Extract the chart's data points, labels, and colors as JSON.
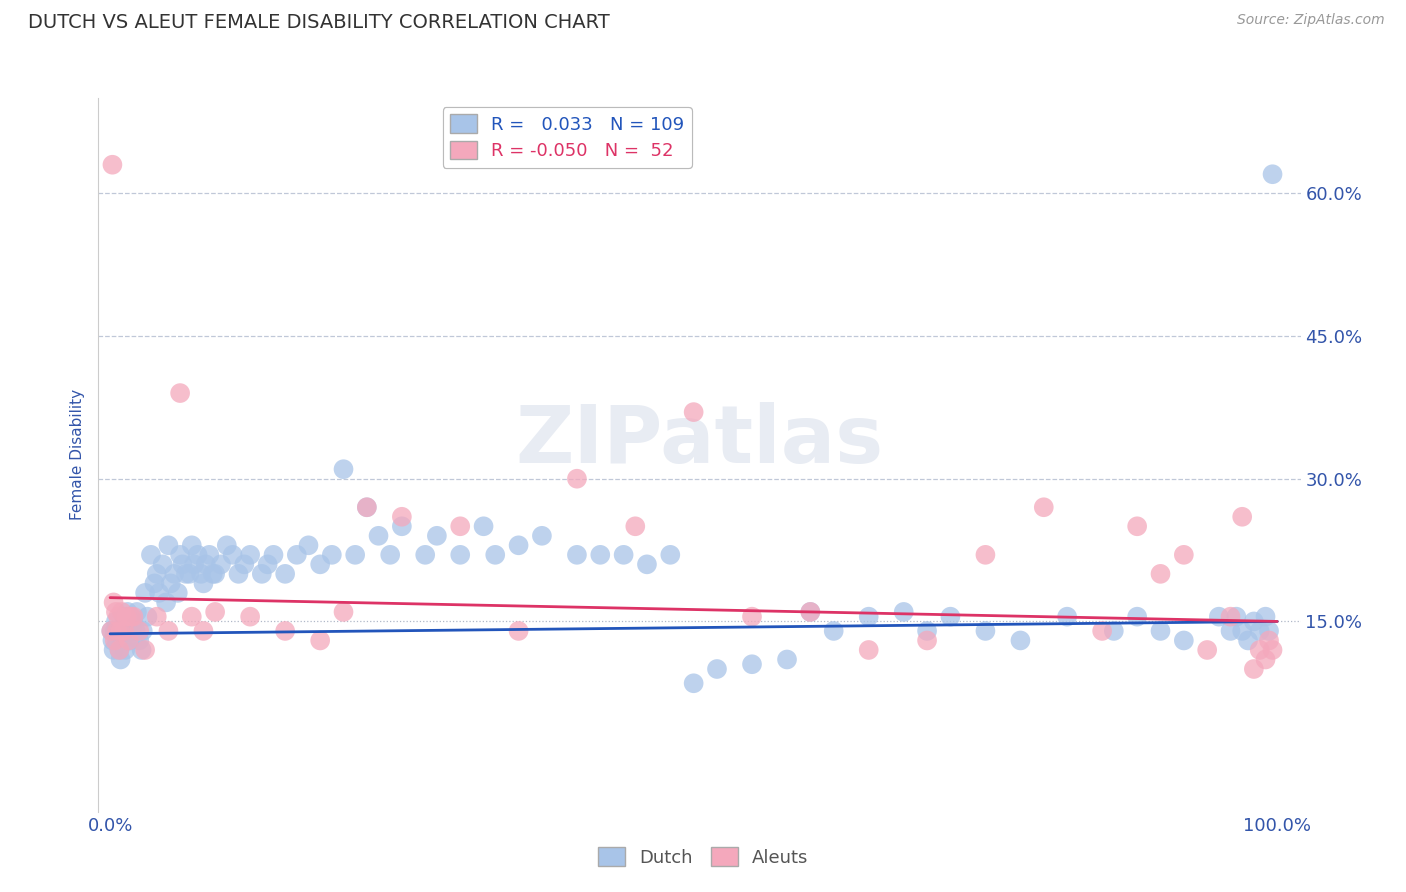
{
  "title": "DUTCH VS ALEUT FEMALE DISABILITY CORRELATION CHART",
  "source": "Source: ZipAtlas.com",
  "ylabel": "Female Disability",
  "xlim": [
    -0.01,
    1.02
  ],
  "ylim": [
    -0.05,
    0.7
  ],
  "yticks": [
    0.15,
    0.3,
    0.45,
    0.6
  ],
  "ytick_labels": [
    "15.0%",
    "30.0%",
    "45.0%",
    "60.0%"
  ],
  "xticks": [
    0.0,
    1.0
  ],
  "xtick_labels": [
    "0.0%",
    "100.0%"
  ],
  "dutch_color": "#a8c4e8",
  "aleut_color": "#f4a8bc",
  "dutch_line_color": "#2255bb",
  "aleut_line_color": "#dd3366",
  "dutch_R": 0.033,
  "dutch_N": 109,
  "aleut_R": -0.05,
  "aleut_N": 52,
  "watermark": "ZIPatlas",
  "background_color": "#ffffff",
  "title_color": "#333333",
  "axis_label_color": "#3355aa",
  "tick_color": "#3355aa",
  "grid_color": "#c0c8d8",
  "dutch_trend_x0": 0.0,
  "dutch_trend_y0": 0.137,
  "dutch_trend_x1": 1.0,
  "dutch_trend_y1": 0.15,
  "aleut_trend_x0": 0.0,
  "aleut_trend_y0": 0.175,
  "aleut_trend_x1": 1.0,
  "aleut_trend_y1": 0.15,
  "dutch_x": [
    0.001,
    0.002,
    0.003,
    0.004,
    0.005,
    0.006,
    0.007,
    0.008,
    0.009,
    0.01,
    0.011,
    0.012,
    0.013,
    0.014,
    0.015,
    0.016,
    0.017,
    0.018,
    0.019,
    0.02,
    0.022,
    0.023,
    0.025,
    0.027,
    0.028,
    0.03,
    0.032,
    0.035,
    0.038,
    0.04,
    0.042,
    0.045,
    0.048,
    0.05,
    0.052,
    0.055,
    0.058,
    0.06,
    0.062,
    0.065,
    0.068,
    0.07,
    0.072,
    0.075,
    0.078,
    0.08,
    0.082,
    0.085,
    0.088,
    0.09,
    0.095,
    0.1,
    0.105,
    0.11,
    0.115,
    0.12,
    0.13,
    0.135,
    0.14,
    0.15,
    0.16,
    0.17,
    0.18,
    0.19,
    0.2,
    0.21,
    0.22,
    0.23,
    0.24,
    0.25,
    0.27,
    0.28,
    0.3,
    0.32,
    0.33,
    0.35,
    0.37,
    0.4,
    0.42,
    0.44,
    0.46,
    0.48,
    0.5,
    0.52,
    0.55,
    0.58,
    0.6,
    0.62,
    0.65,
    0.68,
    0.7,
    0.72,
    0.75,
    0.78,
    0.82,
    0.86,
    0.88,
    0.9,
    0.92,
    0.95,
    0.96,
    0.965,
    0.97,
    0.975,
    0.98,
    0.985,
    0.99,
    0.993,
    0.996
  ],
  "dutch_y": [
    0.14,
    0.13,
    0.12,
    0.14,
    0.15,
    0.13,
    0.14,
    0.12,
    0.11,
    0.13,
    0.14,
    0.155,
    0.12,
    0.13,
    0.16,
    0.14,
    0.13,
    0.155,
    0.14,
    0.15,
    0.14,
    0.16,
    0.13,
    0.12,
    0.14,
    0.18,
    0.155,
    0.22,
    0.19,
    0.2,
    0.18,
    0.21,
    0.17,
    0.23,
    0.19,
    0.2,
    0.18,
    0.22,
    0.21,
    0.2,
    0.2,
    0.23,
    0.21,
    0.22,
    0.2,
    0.19,
    0.21,
    0.22,
    0.2,
    0.2,
    0.21,
    0.23,
    0.22,
    0.2,
    0.21,
    0.22,
    0.2,
    0.21,
    0.22,
    0.2,
    0.22,
    0.23,
    0.21,
    0.22,
    0.31,
    0.22,
    0.27,
    0.24,
    0.22,
    0.25,
    0.22,
    0.24,
    0.22,
    0.25,
    0.22,
    0.23,
    0.24,
    0.22,
    0.22,
    0.22,
    0.21,
    0.22,
    0.085,
    0.1,
    0.105,
    0.11,
    0.16,
    0.14,
    0.155,
    0.16,
    0.14,
    0.155,
    0.14,
    0.13,
    0.155,
    0.14,
    0.155,
    0.14,
    0.13,
    0.155,
    0.14,
    0.155,
    0.14,
    0.13,
    0.15,
    0.14,
    0.155,
    0.14,
    0.62
  ],
  "aleut_x": [
    0.001,
    0.002,
    0.003,
    0.004,
    0.005,
    0.006,
    0.007,
    0.008,
    0.009,
    0.01,
    0.012,
    0.014,
    0.016,
    0.018,
    0.02,
    0.025,
    0.03,
    0.04,
    0.05,
    0.06,
    0.07,
    0.08,
    0.09,
    0.12,
    0.15,
    0.18,
    0.2,
    0.22,
    0.25,
    0.3,
    0.35,
    0.4,
    0.45,
    0.5,
    0.55,
    0.6,
    0.65,
    0.7,
    0.75,
    0.8,
    0.85,
    0.88,
    0.9,
    0.92,
    0.94,
    0.96,
    0.97,
    0.98,
    0.985,
    0.99,
    0.993,
    0.996
  ],
  "aleut_y": [
    0.14,
    0.63,
    0.17,
    0.13,
    0.16,
    0.14,
    0.155,
    0.12,
    0.14,
    0.16,
    0.14,
    0.155,
    0.13,
    0.155,
    0.155,
    0.14,
    0.12,
    0.155,
    0.14,
    0.39,
    0.155,
    0.14,
    0.16,
    0.155,
    0.14,
    0.13,
    0.16,
    0.27,
    0.26,
    0.25,
    0.14,
    0.3,
    0.25,
    0.37,
    0.155,
    0.16,
    0.12,
    0.13,
    0.22,
    0.27,
    0.14,
    0.25,
    0.2,
    0.22,
    0.12,
    0.155,
    0.26,
    0.1,
    0.12,
    0.11,
    0.13,
    0.12
  ]
}
